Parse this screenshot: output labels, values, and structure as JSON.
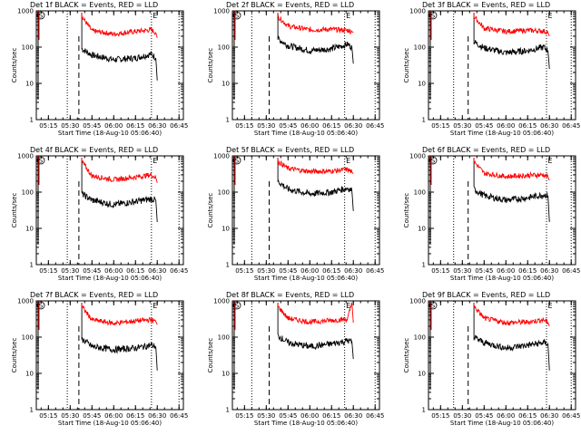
{
  "panel_template": {
    "title_suffix": "BLACK = Events, RED = LLD",
    "ylabel": "Counts/sec",
    "xlabel": "Start Time (18-Aug-10 05:06:40)",
    "y_tick_labels": [
      "1",
      "10",
      "100",
      "1000"
    ],
    "x_tick_labels": [
      "05:15",
      "05:30",
      "05:45",
      "06:00",
      "06:15",
      "06:30",
      "06:45"
    ],
    "e_marker": "E",
    "s_marker": "S"
  },
  "colors": {
    "events": "#000000",
    "lld": "#ff0000",
    "axis": "#000000"
  },
  "chart_data": [
    {
      "type": "line",
      "title": "Det 1f BLACK = Events, RED = LLD",
      "xlabel": "Start Time (18-Aug-10 05:06:40)",
      "ylabel": "Counts/sec",
      "xlim": [
        "05:06:40",
        "06:48"
      ],
      "ylim": [
        1,
        1000
      ],
      "yscale": "log",
      "x": [
        "05:38",
        "05:45",
        "06:00",
        "06:15",
        "06:26",
        "06:29",
        "06:30"
      ],
      "series": [
        {
          "name": "Events",
          "values": [
            90,
            60,
            45,
            50,
            65,
            50,
            12
          ]
        },
        {
          "name": "LLD",
          "values": [
            700,
            280,
            230,
            270,
            300,
            250,
            180
          ]
        }
      ],
      "vlines_dotted": [
        "05:28",
        "06:26",
        "06:45"
      ],
      "vlines_dashed": [
        "05:36"
      ]
    },
    {
      "type": "line",
      "title": "Det 2f BLACK = Events, RED = LLD",
      "xlabel": "Start Time (18-Aug-10 05:06:40)",
      "ylabel": "Counts/sec",
      "xlim": [
        "05:06:40",
        "06:48"
      ],
      "ylim": [
        1,
        1000
      ],
      "yscale": "log",
      "x": [
        "05:38",
        "05:45",
        "06:00",
        "06:15",
        "06:26",
        "06:29",
        "06:30"
      ],
      "series": [
        {
          "name": "Events",
          "values": [
            170,
            110,
            80,
            90,
            120,
            100,
            35
          ]
        },
        {
          "name": "LLD",
          "values": [
            700,
            380,
            300,
            310,
            290,
            270,
            250
          ]
        }
      ],
      "vlines_dotted": [
        "05:20",
        "06:24",
        "06:45"
      ],
      "vlines_dashed": [
        "05:32"
      ]
    },
    {
      "type": "line",
      "title": "Det 3f BLACK = Events, RED = LLD",
      "xlabel": "Start Time (18-Aug-10 05:06:40)",
      "ylabel": "Counts/sec",
      "xlim": [
        "05:06:40",
        "06:48"
      ],
      "ylim": [
        1,
        1000
      ],
      "yscale": "log",
      "x": [
        "05:38",
        "05:45",
        "06:00",
        "06:15",
        "06:26",
        "06:29",
        "06:30"
      ],
      "series": [
        {
          "name": "Events",
          "values": [
            140,
            95,
            70,
            80,
            100,
            80,
            25
          ]
        },
        {
          "name": "LLD",
          "values": [
            700,
            330,
            270,
            290,
            280,
            250,
            200
          ]
        }
      ],
      "vlines_dotted": [
        "05:24",
        "06:28",
        "06:45"
      ],
      "vlines_dashed": [
        "05:34"
      ]
    },
    {
      "type": "line",
      "title": "Det 4f BLACK = Events, RED = LLD",
      "xlabel": "Start Time (18-Aug-10 05:06:40)",
      "ylabel": "Counts/sec",
      "xlim": [
        "05:06:40",
        "06:48"
      ],
      "ylim": [
        1,
        1000
      ],
      "yscale": "log",
      "x": [
        "05:38",
        "05:45",
        "06:00",
        "06:15",
        "06:26",
        "06:29",
        "06:30"
      ],
      "series": [
        {
          "name": "Events",
          "values": [
            90,
            60,
            45,
            55,
            65,
            60,
            15
          ]
        },
        {
          "name": "LLD",
          "values": [
            700,
            280,
            220,
            260,
            300,
            250,
            180
          ]
        }
      ],
      "vlines_dotted": [
        "05:28",
        "06:26",
        "06:45"
      ],
      "vlines_dashed": [
        "05:36"
      ]
    },
    {
      "type": "line",
      "title": "Det 5f BLACK = Events, RED = LLD",
      "xlabel": "Start Time (18-Aug-10 05:06:40)",
      "ylabel": "Counts/sec",
      "xlim": [
        "05:06:40",
        "06:48"
      ],
      "ylim": [
        1,
        1000
      ],
      "yscale": "log",
      "x": [
        "05:38",
        "05:45",
        "06:00",
        "06:15",
        "06:26",
        "06:29",
        "06:30"
      ],
      "series": [
        {
          "name": "Events",
          "values": [
            200,
            120,
            90,
            100,
            130,
            110,
            30
          ]
        },
        {
          "name": "LLD",
          "values": [
            700,
            450,
            370,
            380,
            420,
            360,
            320
          ]
        }
      ],
      "vlines_dotted": [
        "05:20",
        "06:24",
        "06:45"
      ],
      "vlines_dashed": [
        "05:32"
      ]
    },
    {
      "type": "line",
      "title": "Det 6f BLACK = Events, RED = LLD",
      "xlabel": "Start Time (18-Aug-10 05:06:40)",
      "ylabel": "Counts/sec",
      "xlim": [
        "05:06:40",
        "06:48"
      ],
      "ylim": [
        1,
        1000
      ],
      "yscale": "log",
      "x": [
        "05:38",
        "05:45",
        "06:00",
        "06:15",
        "06:26",
        "06:29",
        "06:30"
      ],
      "series": [
        {
          "name": "Events",
          "values": [
            120,
            80,
            60,
            70,
            85,
            80,
            15
          ]
        },
        {
          "name": "LLD",
          "values": [
            700,
            330,
            270,
            290,
            300,
            260,
            210
          ]
        }
      ],
      "vlines_dotted": [
        "05:24",
        "06:28",
        "06:45"
      ],
      "vlines_dashed": [
        "05:34"
      ]
    },
    {
      "type": "line",
      "title": "Det 7f BLACK = Events, RED = LLD",
      "xlabel": "Start Time (18-Aug-10 05:06:40)",
      "ylabel": "Counts/sec",
      "xlim": [
        "05:06:40",
        "06:48"
      ],
      "ylim": [
        1,
        1000
      ],
      "yscale": "log",
      "x": [
        "05:38",
        "05:45",
        "06:00",
        "06:15",
        "06:26",
        "06:29",
        "06:30"
      ],
      "series": [
        {
          "name": "Events",
          "values": [
            90,
            55,
            45,
            50,
            60,
            55,
            12
          ]
        },
        {
          "name": "LLD",
          "values": [
            700,
            300,
            240,
            280,
            300,
            270,
            220
          ]
        }
      ],
      "vlines_dotted": [
        "05:28",
        "06:26",
        "06:45"
      ],
      "vlines_dashed": [
        "05:36"
      ]
    },
    {
      "type": "line",
      "title": "Det 8f BLACK = Events, RED = LLD",
      "xlabel": "Start Time (18-Aug-10 05:06:40)",
      "ylabel": "Counts/sec",
      "xlim": [
        "05:06:40",
        "06:48"
      ],
      "ylim": [
        1,
        1000
      ],
      "yscale": "log",
      "x": [
        "05:38",
        "05:45",
        "06:00",
        "06:15",
        "06:26",
        "06:29",
        "06:30"
      ],
      "series": [
        {
          "name": "Events",
          "values": [
            110,
            70,
            55,
            65,
            80,
            75,
            25
          ]
        },
        {
          "name": "LLD",
          "values": [
            700,
            330,
            260,
            290,
            310,
            900,
            250
          ]
        }
      ],
      "vlines_dotted": [
        "05:20",
        "06:24",
        "06:45"
      ],
      "vlines_dashed": [
        "05:32"
      ]
    },
    {
      "type": "line",
      "title": "Det 9f BLACK = Events, RED = LLD",
      "xlabel": "Start Time (18-Aug-10 05:06:40)",
      "ylabel": "Counts/sec",
      "xlim": [
        "05:06:40",
        "06:48"
      ],
      "ylim": [
        1,
        1000
      ],
      "yscale": "log",
      "x": [
        "05:38",
        "05:45",
        "06:00",
        "06:15",
        "06:26",
        "06:29",
        "06:30"
      ],
      "series": [
        {
          "name": "Events",
          "values": [
            100,
            70,
            50,
            60,
            70,
            65,
            12
          ]
        },
        {
          "name": "LLD",
          "values": [
            700,
            330,
            250,
            260,
            300,
            250,
            200
          ]
        }
      ],
      "vlines_dotted": [
        "05:24",
        "06:28",
        "06:45"
      ],
      "vlines_dashed": [
        "05:34"
      ]
    }
  ]
}
